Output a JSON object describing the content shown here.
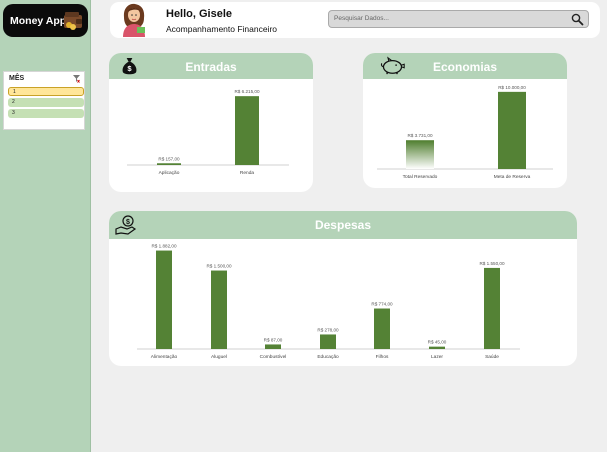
{
  "app": {
    "name": "Money App"
  },
  "slicer": {
    "title": "MÊS",
    "items": [
      {
        "label": "1",
        "selected": true
      },
      {
        "label": "2",
        "selected": false
      },
      {
        "label": "3",
        "selected": false
      }
    ]
  },
  "header": {
    "greeting": "Hello, Gisele",
    "subtitle": "Acompanhamento Financeiro",
    "search_placeholder": "Pesquisar Dados..."
  },
  "colors": {
    "sidebar": "#b4d3b8",
    "bar": "#548235",
    "logo_bg": "#0b0b0b"
  },
  "cards": {
    "entradas": {
      "title": "Entradas",
      "icon": "money-bag-icon"
    },
    "economias": {
      "title": "Economias",
      "icon": "piggy-bank-icon"
    },
    "despesas": {
      "title": "Despesas",
      "icon": "hand-money-icon"
    }
  },
  "chart_data": [
    {
      "id": "entradas",
      "type": "bar",
      "categories": [
        "Aplicação",
        "Renda"
      ],
      "values": [
        157,
        6215
      ],
      "data_labels": [
        "R$ 157,00",
        "R$ 6.215,00"
      ],
      "ylim": [
        0,
        6500
      ]
    },
    {
      "id": "economias",
      "type": "bar",
      "categories": [
        "Total Reservado",
        "Meta de Reserva"
      ],
      "values": [
        3731,
        10000
      ],
      "data_labels": [
        "R$ 3.731,00",
        "R$ 10.000,00"
      ],
      "ylim": [
        0,
        10500
      ]
    },
    {
      "id": "despesas",
      "type": "bar",
      "categories": [
        "Alimentação",
        "Aluguel",
        "Combustível",
        "Educação",
        "Filhos",
        "Lazer",
        "Saúde"
      ],
      "values": [
        1882,
        1500,
        87,
        278,
        774,
        45,
        1550
      ],
      "data_labels": [
        "R$ 1.882,00",
        "R$ 1.500,00",
        "R$ 87,00",
        "R$ 278,00",
        "R$ 774,00",
        "R$ 45,00",
        "R$ 1.550,00"
      ],
      "ylim": [
        0,
        1950
      ]
    }
  ]
}
